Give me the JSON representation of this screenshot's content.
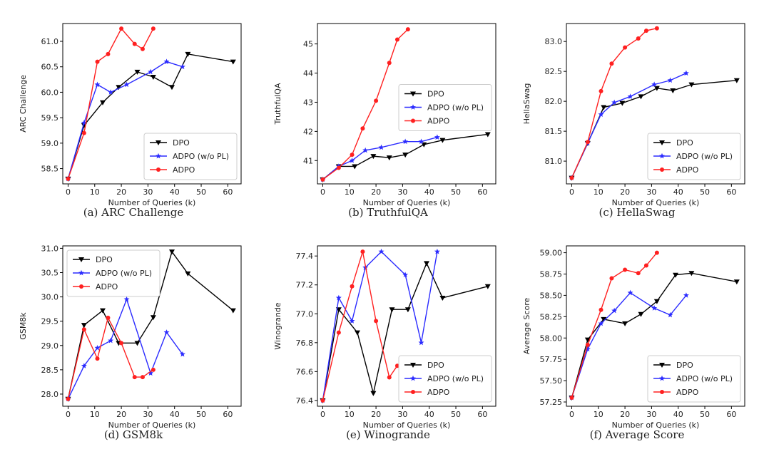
{
  "chart_data": [
    {
      "type": "line",
      "caption": "(a) ARC Challenge",
      "xlabel": "Number of Queries (k)",
      "ylabel": "ARC Challenge",
      "xlim": [
        -2,
        65
      ],
      "ylim": [
        58.2,
        61.35
      ],
      "xticks": [
        0,
        10,
        20,
        30,
        40,
        50,
        60
      ],
      "yticks": [
        58.5,
        59.0,
        59.5,
        60.0,
        60.5,
        61.0
      ],
      "ytick_format": "1",
      "legend_position": "lower-right",
      "series": [
        {
          "name": "DPO",
          "color": "#000000",
          "marker": "triangle-down",
          "x": [
            0,
            6,
            13,
            19,
            26,
            32,
            39,
            45,
            62
          ],
          "y": [
            58.3,
            59.35,
            59.8,
            60.1,
            60.4,
            60.3,
            60.1,
            60.75,
            60.6
          ]
        },
        {
          "name": "ADPO (w/o PL)",
          "color": "#2b2bff",
          "marker": "star",
          "x": [
            0,
            6,
            11,
            16,
            22,
            31,
            37,
            43
          ],
          "y": [
            58.3,
            59.4,
            60.15,
            60.0,
            60.15,
            60.4,
            60.6,
            60.5
          ]
        },
        {
          "name": "ADPO",
          "color": "#ff2020",
          "marker": "circle",
          "x": [
            0,
            6,
            11,
            15,
            20,
            25,
            28,
            32
          ],
          "y": [
            58.3,
            59.2,
            60.6,
            60.75,
            61.25,
            60.95,
            60.85,
            61.25
          ]
        }
      ]
    },
    {
      "type": "line",
      "caption": "(b) TruthfulQA",
      "xlabel": "Number of Queries (k)",
      "ylabel": "TruthfulQA",
      "xlim": [
        -2,
        65
      ],
      "ylim": [
        40.2,
        45.7
      ],
      "xticks": [
        0,
        10,
        20,
        30,
        40,
        50,
        60
      ],
      "yticks": [
        41,
        42,
        43,
        44,
        45
      ],
      "ytick_format": "0",
      "legend_position": "center-right",
      "series": [
        {
          "name": "DPO",
          "color": "#000000",
          "marker": "triangle-down",
          "x": [
            0,
            6,
            12,
            19,
            25,
            31,
            38,
            45,
            62
          ],
          "y": [
            40.35,
            40.8,
            40.8,
            41.15,
            41.1,
            41.2,
            41.55,
            41.7,
            41.9
          ]
        },
        {
          "name": "ADPO (w/o PL)",
          "color": "#2b2bff",
          "marker": "star",
          "x": [
            0,
            6,
            11,
            16,
            22,
            31,
            37,
            43
          ],
          "y": [
            40.35,
            40.8,
            41.0,
            41.35,
            41.45,
            41.65,
            41.65,
            41.8
          ]
        },
        {
          "name": "ADPO",
          "color": "#ff2020",
          "marker": "circle",
          "x": [
            0,
            6,
            11,
            15,
            20,
            25,
            28,
            32
          ],
          "y": [
            40.35,
            40.75,
            41.2,
            42.1,
            43.05,
            44.35,
            45.15,
            45.5
          ]
        }
      ]
    },
    {
      "type": "line",
      "caption": "(c) HellaSwag",
      "xlabel": "Number of Queries (k)",
      "ylabel": "HellaSwag",
      "xlim": [
        -2,
        65
      ],
      "ylim": [
        80.62,
        83.3
      ],
      "xticks": [
        0,
        10,
        20,
        30,
        40,
        50,
        60
      ],
      "yticks": [
        81.0,
        81.5,
        82.0,
        82.5,
        83.0
      ],
      "ytick_format": "1",
      "legend_position": "lower-right",
      "series": [
        {
          "name": "DPO",
          "color": "#000000",
          "marker": "triangle-down",
          "x": [
            0,
            6,
            12,
            19,
            26,
            32,
            38,
            45,
            62
          ],
          "y": [
            80.72,
            81.3,
            81.9,
            81.97,
            82.08,
            82.22,
            82.18,
            82.28,
            82.35
          ]
        },
        {
          "name": "ADPO (w/o PL)",
          "color": "#2b2bff",
          "marker": "star",
          "x": [
            0,
            6,
            11,
            16,
            22,
            31,
            37,
            43
          ],
          "y": [
            80.72,
            81.3,
            81.78,
            81.98,
            82.08,
            82.28,
            82.35,
            82.47
          ]
        },
        {
          "name": "ADPO",
          "color": "#ff2020",
          "marker": "circle",
          "x": [
            0,
            6,
            11,
            15,
            20,
            25,
            28,
            32
          ],
          "y": [
            80.72,
            81.32,
            82.17,
            82.63,
            82.9,
            83.05,
            83.18,
            83.22
          ]
        }
      ]
    },
    {
      "type": "line",
      "caption": "(d) GSM8k",
      "xlabel": "Number of Queries (k)",
      "ylabel": "GSM8k",
      "xlim": [
        -2,
        65
      ],
      "ylim": [
        27.75,
        31.05
      ],
      "xticks": [
        0,
        10,
        20,
        30,
        40,
        50,
        60
      ],
      "yticks": [
        28.0,
        28.5,
        29.0,
        29.5,
        30.0,
        30.5,
        31.0
      ],
      "ytick_format": "1",
      "legend_position": "upper-left",
      "series": [
        {
          "name": "DPO",
          "color": "#000000",
          "marker": "triangle-down",
          "x": [
            0,
            6,
            13,
            19,
            26,
            32,
            39,
            45,
            62
          ],
          "y": [
            27.9,
            29.42,
            29.72,
            29.05,
            29.05,
            29.58,
            30.93,
            30.48,
            29.72
          ]
        },
        {
          "name": "ADPO (w/o PL)",
          "color": "#2b2bff",
          "marker": "star",
          "x": [
            0,
            6,
            11,
            16,
            22,
            31,
            37,
            43
          ],
          "y": [
            27.9,
            28.58,
            28.95,
            29.1,
            29.95,
            28.43,
            29.27,
            28.82
          ]
        },
        {
          "name": "ADPO",
          "color": "#ff2020",
          "marker": "circle",
          "x": [
            0,
            6,
            11,
            15,
            20,
            25,
            28,
            32
          ],
          "y": [
            27.9,
            29.33,
            28.73,
            29.57,
            29.05,
            28.35,
            28.35,
            28.5
          ]
        }
      ]
    },
    {
      "type": "line",
      "caption": "(e) Winogrande",
      "xlabel": "Number of Queries (k)",
      "ylabel": "Winogrande",
      "xlim": [
        -2,
        65
      ],
      "ylim": [
        76.36,
        77.47
      ],
      "xticks": [
        0,
        10,
        20,
        30,
        40,
        50,
        60
      ],
      "yticks": [
        76.4,
        76.6,
        76.8,
        77.0,
        77.2,
        77.4
      ],
      "ytick_format": "1",
      "legend_position": "lower-right",
      "series": [
        {
          "name": "DPO",
          "color": "#000000",
          "marker": "triangle-down",
          "x": [
            0,
            6,
            13,
            19,
            26,
            32,
            39,
            45,
            62
          ],
          "y": [
            76.4,
            77.03,
            76.87,
            76.45,
            77.03,
            77.03,
            77.35,
            77.11,
            77.19
          ]
        },
        {
          "name": "ADPO (w/o PL)",
          "color": "#2b2bff",
          "marker": "star",
          "x": [
            0,
            6,
            11,
            16,
            22,
            31,
            37,
            43
          ],
          "y": [
            76.4,
            77.11,
            76.95,
            77.32,
            77.43,
            77.27,
            76.8,
            77.43
          ]
        },
        {
          "name": "ADPO",
          "color": "#ff2020",
          "marker": "circle",
          "x": [
            0,
            6,
            11,
            15,
            20,
            25,
            28,
            32
          ],
          "y": [
            76.4,
            76.87,
            77.19,
            77.43,
            76.95,
            76.56,
            76.64,
            76.64
          ]
        }
      ]
    },
    {
      "type": "line",
      "caption": "(f) Average Score",
      "xlabel": "Number of Queries (k)",
      "ylabel": "Average Score",
      "xlim": [
        -2,
        65
      ],
      "ylim": [
        57.2,
        59.08
      ],
      "xticks": [
        0,
        10,
        20,
        30,
        40,
        50,
        60
      ],
      "yticks": [
        57.25,
        57.5,
        57.75,
        58.0,
        58.25,
        58.5,
        58.75,
        59.0
      ],
      "ytick_format": "2",
      "legend_position": "lower-right",
      "series": [
        {
          "name": "DPO",
          "color": "#000000",
          "marker": "triangle-down",
          "x": [
            0,
            6,
            12,
            20,
            26,
            32,
            39,
            45,
            62
          ],
          "y": [
            57.3,
            57.98,
            58.22,
            58.17,
            58.28,
            58.43,
            58.74,
            58.76,
            58.66
          ]
        },
        {
          "name": "ADPO (w/o PL)",
          "color": "#2b2bff",
          "marker": "star",
          "x": [
            0,
            6,
            11,
            16,
            22,
            31,
            37,
            43
          ],
          "y": [
            57.3,
            57.87,
            58.17,
            58.32,
            58.53,
            58.35,
            58.27,
            58.5
          ]
        },
        {
          "name": "ADPO",
          "color": "#ff2020",
          "marker": "circle",
          "x": [
            0,
            6,
            11,
            15,
            20,
            25,
            28,
            32
          ],
          "y": [
            57.3,
            57.92,
            58.33,
            58.7,
            58.8,
            58.76,
            58.85,
            59.0
          ]
        }
      ]
    }
  ]
}
